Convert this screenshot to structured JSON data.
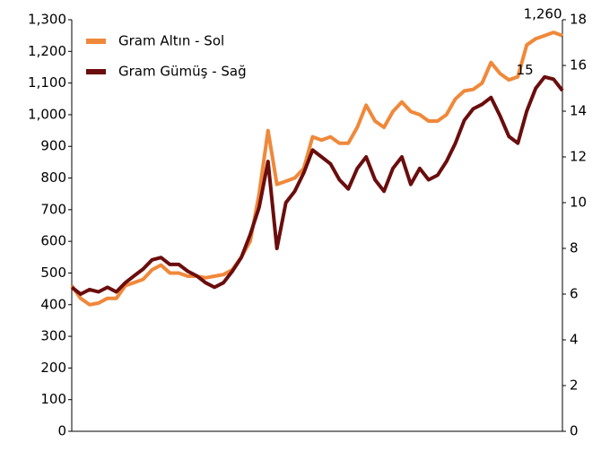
{
  "chart_data": {
    "type": "line",
    "categories": [
      null,
      null,
      null,
      null,
      null,
      null,
      null,
      null,
      null,
      null,
      null,
      null,
      null,
      null,
      null,
      null,
      null,
      null,
      null,
      null,
      null,
      null,
      null,
      null,
      null,
      null,
      null,
      null,
      null,
      null,
      null,
      null,
      null,
      null,
      null,
      null,
      null,
      null,
      null,
      null,
      null,
      null,
      null,
      null,
      null,
      null,
      null,
      null,
      null,
      null,
      null,
      null,
      null,
      null,
      null,
      null
    ],
    "series": [
      {
        "name": "Gram Altın - Sol",
        "color": "#f0883a",
        "axis": "y",
        "values": [
          460,
          420,
          400,
          405,
          420,
          420,
          460,
          470,
          480,
          510,
          525,
          500,
          500,
          490,
          490,
          485,
          490,
          495,
          510,
          550,
          600,
          750,
          950,
          780,
          790,
          800,
          830,
          930,
          920,
          930,
          910,
          910,
          960,
          1030,
          980,
          960,
          1010,
          1040,
          1010,
          1000,
          980,
          980,
          1000,
          1050,
          1075,
          1080,
          1100,
          1165,
          1130,
          1110,
          1120,
          1220,
          1240,
          1250,
          1260,
          1250
        ],
        "value_labels": [
          null,
          null,
          null,
          null,
          null,
          null,
          null,
          null,
          null,
          null,
          null,
          null,
          null,
          null,
          null,
          null,
          null,
          null,
          null,
          null,
          null,
          null,
          null,
          null,
          null,
          null,
          null,
          null,
          null,
          null,
          null,
          null,
          null,
          null,
          null,
          null,
          null,
          null,
          null,
          null,
          null,
          null,
          null,
          null,
          null,
          null,
          null,
          null,
          null,
          null,
          null,
          null,
          null,
          null,
          "1,260",
          null
        ]
      },
      {
        "name": "Gram Gümüş - Sağ",
        "color": "#6b0d0d",
        "axis": "y2",
        "values": [
          6.3,
          6.0,
          6.2,
          6.1,
          6.3,
          6.1,
          6.5,
          6.8,
          7.1,
          7.5,
          7.6,
          7.3,
          7.3,
          7.0,
          6.8,
          6.5,
          6.3,
          6.5,
          7.0,
          7.6,
          8.6,
          9.8,
          11.8,
          8.0,
          10.0,
          10.5,
          11.3,
          12.3,
          12.0,
          11.7,
          11.0,
          10.6,
          11.5,
          12.0,
          11.0,
          10.5,
          11.5,
          12.0,
          10.8,
          11.5,
          11.0,
          11.2,
          11.8,
          12.6,
          13.6,
          14.1,
          14.3,
          14.6,
          13.8,
          12.9,
          12.6,
          14.0,
          15.0,
          15.5,
          15.4,
          14.9
        ],
        "value_labels": [
          null,
          null,
          null,
          null,
          null,
          null,
          null,
          null,
          null,
          null,
          null,
          null,
          null,
          null,
          null,
          null,
          null,
          null,
          null,
          null,
          null,
          null,
          null,
          null,
          null,
          null,
          null,
          null,
          null,
          null,
          null,
          null,
          null,
          null,
          null,
          null,
          null,
          null,
          null,
          null,
          null,
          null,
          null,
          null,
          null,
          null,
          null,
          null,
          null,
          null,
          null,
          null,
          "15",
          null,
          null,
          null
        ]
      }
    ],
    "ylim": [
      0,
      1300
    ],
    "yticks": [
      0,
      100,
      200,
      300,
      400,
      500,
      600,
      700,
      800,
      900,
      {
        "value": 1000,
        "label": "1,000"
      },
      {
        "value": 1100,
        "label": "1,100"
      },
      {
        "value": 1200,
        "label": "1,200"
      },
      {
        "value": 1300,
        "label": "1,300"
      }
    ],
    "y2lim": [
      0,
      18
    ],
    "y2ticks": [
      0,
      2,
      4,
      6,
      8,
      10,
      12,
      14,
      16,
      18
    ],
    "legend": "upper-left",
    "grid": false
  }
}
